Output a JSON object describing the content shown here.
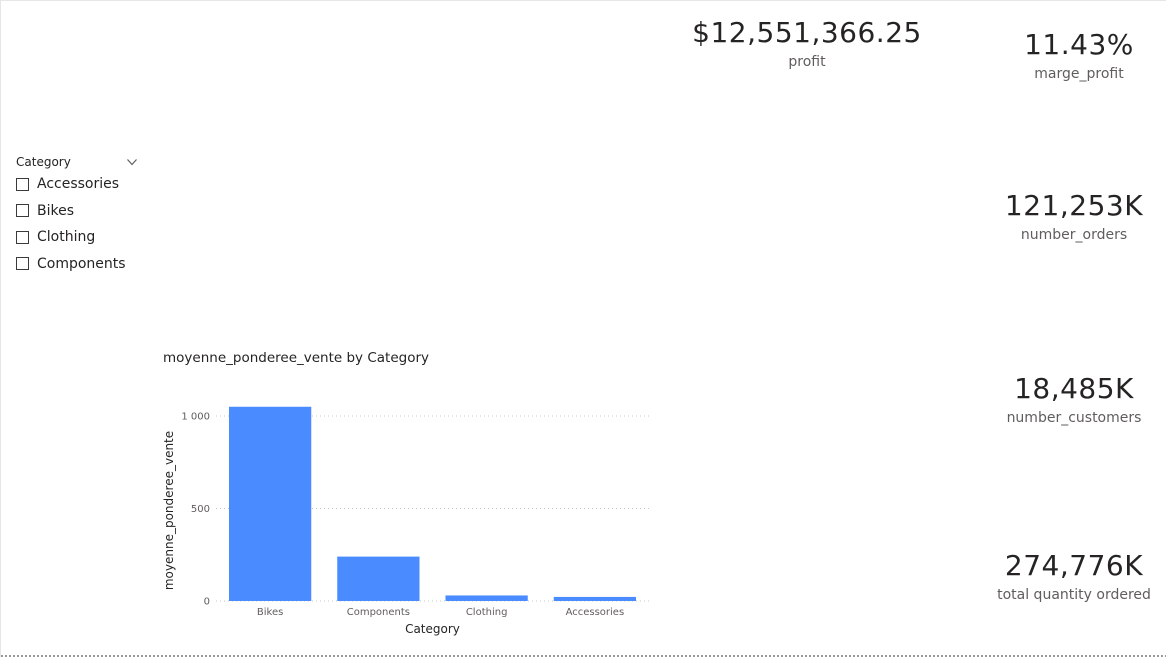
{
  "kpis": {
    "profit": {
      "value": "$12,551,366.25",
      "label": "profit"
    },
    "marge_profit": {
      "value": "11.43%",
      "label": "marge_profit"
    },
    "number_orders": {
      "value": "121,253K",
      "label": "number_orders"
    },
    "number_customers": {
      "value": "18,485K",
      "label": "number_customers"
    },
    "total_quantity": {
      "value": "274,776K",
      "label": "total quantity ordered"
    }
  },
  "slicer": {
    "title": "Category",
    "icon": "chevron-down-icon",
    "items": [
      {
        "label": "Accessories",
        "checked": false
      },
      {
        "label": "Bikes",
        "checked": false
      },
      {
        "label": "Clothing",
        "checked": false
      },
      {
        "label": "Components",
        "checked": false
      }
    ]
  },
  "colors": {
    "bar": "#4a8cff",
    "text": "#252423",
    "muted": "#605e5c",
    "grid": "#c8c6c4"
  },
  "chart_data": {
    "type": "bar",
    "title": "moyenne_ponderee_vente by Category",
    "xlabel": "Category",
    "ylabel": "moyenne_ponderee_vente",
    "categories": [
      "Bikes",
      "Components",
      "Clothing",
      "Accessories"
    ],
    "values": [
      1050,
      240,
      30,
      22
    ],
    "ylim": [
      0,
      1000
    ],
    "yticks": [
      0,
      500,
      1000
    ],
    "ytick_labels": [
      "0",
      "500",
      "1 000"
    ],
    "grid": true,
    "legend": "none"
  }
}
